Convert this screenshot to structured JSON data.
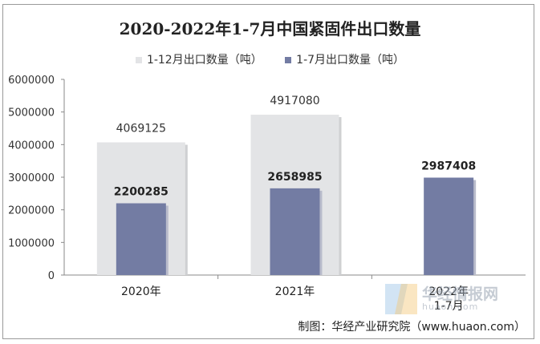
{
  "chart_data": {
    "type": "bar",
    "title": "2020-2022年1-7月中国紧固件出口数量",
    "categories": [
      "2020年",
      "2021年",
      "2022年\n1-7月"
    ],
    "series": [
      {
        "name": "1-12月出口数量（吨）",
        "values": [
          4069125,
          4917080,
          null
        ],
        "color": "#e3e4e6"
      },
      {
        "name": "1-7月出口数量（吨）",
        "values": [
          2200285,
          2658985,
          2987408
        ],
        "color": "#737ca3"
      }
    ],
    "value_labels": {
      "full_year": [
        "4069125",
        "4917080",
        ""
      ],
      "jan_jul": [
        "2200285",
        "2658985",
        "2987408"
      ]
    },
    "ylim": [
      0,
      6000000
    ],
    "yticks": [
      "0",
      "1000000",
      "2000000",
      "3000000",
      "4000000",
      "5000000",
      "6000000"
    ],
    "grid": false,
    "legend_position": "top"
  },
  "source": "制图：华经产业研究院（www.huaon.com）",
  "watermark": {
    "text": "华经情报网",
    "sub": "huaon.com"
  }
}
